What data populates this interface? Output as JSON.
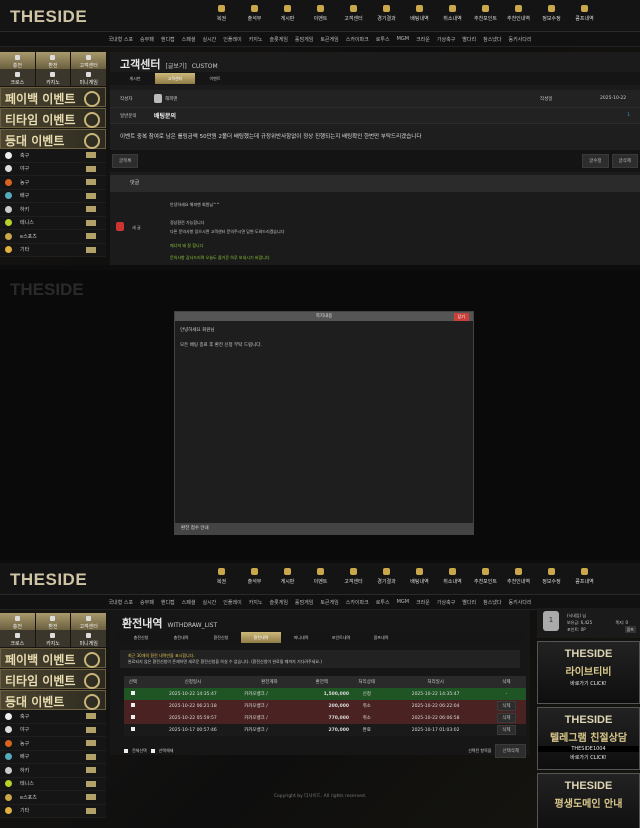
{
  "brand": "THESIDE",
  "nav": [
    "복권",
    "출석부",
    "게시판",
    "이벤트",
    "고객센터",
    "경기결과",
    "배팅내역",
    "취소내역",
    "추천포인트",
    "추천인내역",
    "정보수정",
    "콤프내역"
  ],
  "subnav": [
    "국내형 스포",
    "승무패",
    "핸디캡",
    "스페셜",
    "실시간",
    "인플레이",
    "카지노",
    "슬롯게임",
    "홀덤게임",
    "토큰게임",
    "스카이파크",
    "로투스",
    "MGM",
    "크라운",
    "가상축구",
    "별다리",
    "참스냈다",
    "동키사다리"
  ],
  "side": {
    "top": [
      "충전",
      "환전",
      "고객센터"
    ],
    "second": [
      "크로스",
      "카지노",
      "미니게임"
    ],
    "events": [
      "페이백 이벤트",
      "티타임 이벤트",
      "등대 이벤트"
    ],
    "sports": [
      "축구",
      "야구",
      "농구",
      "배구",
      "하키",
      "테니스",
      "e스포츠",
      "기타"
    ]
  },
  "cs": {
    "title": "고객센터",
    "sub": "[글보기]",
    "eng": "CUSTOM",
    "tabs": [
      "게시판",
      "고객센터",
      "이벤트"
    ],
    "writer_label": "작성자",
    "writer": "해피맨",
    "date_label": "작성일",
    "date": "2025-10-22",
    "cat_label": "일반문의",
    "subject": "배팅문의",
    "comment_count": "1",
    "body": "이벤트 중복 참여로 남은 롤링금액 50만원 2폴더 배팅했는데 규정위반사항없이 정상 진행되는지 배팅확인 한번만 부탁드리겠습니다",
    "list_btn": "글목록",
    "edit_btn": "글수정",
    "delete_btn": "글삭제",
    "reply_header": "댓글",
    "replier": "새 글",
    "reply": [
      "안녕하세요 해피맨 회원님^^",
      "정상환전 가능합니다",
      "다른 문의사항 있으시면 고객센터 문의주시면 답변 도와드리겠습니다",
      "메너져 돼 잘 합니다",
      "문의사항 감사드리며 오늘도 즐거운 하루 보내시기 바랍니다"
    ]
  },
  "modal": {
    "title": "쪽지내용",
    "close": "닫기",
    "lines": [
      "안녕하세요 회원님",
      "모든 배팅 종료 후 환전 신청 부탁 드립니다."
    ],
    "footer": "환전 접수 안내"
  },
  "wd": {
    "title": "환전내역",
    "eng": "WITHDRAW_LIST",
    "tabs": [
      "충전신청",
      "충전내역",
      "환전신청",
      "환전내역",
      "머니내역",
      "포인트내역",
      "콤프내역"
    ],
    "notice": [
      "최근 30개의 환전 내역만을 표시합니다.",
      "완료되지 않은 환전신청이 존재하면 새로운 환전신청을 하실 수 없습니다. (환전신청이 완료될 때까지 기다려주세요.)"
    ],
    "cols": [
      "선택",
      "신청일시",
      "환전계좌",
      "환전액",
      "처리상태",
      "처리일시",
      "삭제"
    ],
    "rows": [
      {
        "req": "2025-10-22 14:35:47",
        "acct": "카카오뱅크 /",
        "amt": "1,500,000",
        "status": "신청",
        "done": "2025-10-22 14:35:47",
        "del": "-"
      },
      {
        "req": "2025-10-22 06:21:18",
        "acct": "카카오뱅크 /",
        "amt": "200,000",
        "status": "취소",
        "done": "2025-10-22 06:22:04",
        "del": "삭제"
      },
      {
        "req": "2025-10-22 05:59:57",
        "acct": "카카오뱅크 /",
        "amt": "770,000",
        "status": "취소",
        "done": "2025-10-22 06:06:58",
        "del": "삭제"
      },
      {
        "req": "2025-10-17 00:57:46",
        "acct": "카카오뱅크 /",
        "amt": "270,000",
        "status": "완료",
        "done": "2025-10-17 01:03:02",
        "del": "삭제"
      }
    ],
    "select_all": "전체선택",
    "deselect": "선택해제",
    "selected": "선택된 항목을",
    "delete_sel": "선택삭제"
  },
  "copyright": "Copyright by 더사이드. All rights reserved.",
  "user": {
    "level": "1",
    "name": "(닉네임) 님",
    "balance": "보유금: 6,425",
    "notes": "쪽지: 0",
    "points": "포인트: 0P",
    "comp": "콤프"
  },
  "banners": [
    {
      "brand": "THESIDE",
      "title": "라이브티비",
      "sub": "바로가기 CLICK!"
    },
    {
      "brand": "THESIDE",
      "title": "텔레그램 친절상담",
      "tg": "THESIDE1004",
      "sub": "바로가기 CLICK!"
    },
    {
      "brand": "THESIDE",
      "title": "평생도메인 안내"
    }
  ],
  "colors": {
    "gold": "#c9b57a",
    "bg": "#1b1b1b",
    "approved_row": "#1f5424",
    "cancel_row": "#4a2222",
    "close_btn": "#c9403a"
  }
}
